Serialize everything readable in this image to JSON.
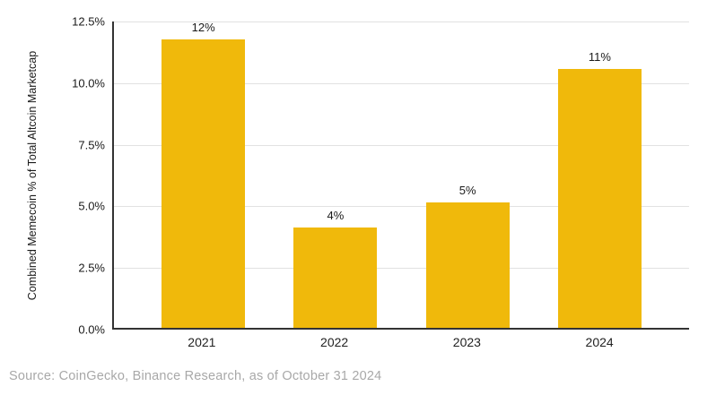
{
  "chart_data": {
    "type": "bar",
    "title": "",
    "xlabel": "",
    "ylabel": "Combined Memecoin % of Total Altcoin Marketcap",
    "categories": [
      "2021",
      "2022",
      "2023",
      "2024"
    ],
    "values": [
      12.25,
      4.1,
      5.1,
      10.55
    ],
    "bar_labels": [
      "12%",
      "4%",
      "5%",
      "11%"
    ],
    "ylim": [
      0,
      12.5
    ],
    "yticks": [
      {
        "value": 12.5,
        "label": "12.5%"
      },
      {
        "value": 10.0,
        "label": "10.0%"
      },
      {
        "value": 7.5,
        "label": "7.5%"
      },
      {
        "value": 5.0,
        "label": "5.0%"
      },
      {
        "value": 2.5,
        "label": "2.5%"
      },
      {
        "value": 0.0,
        "label": "0.0%"
      }
    ],
    "grid": true,
    "legend": "none",
    "colors": {
      "bar": "#F0B90B",
      "axis": "#333333",
      "gridline": "#e2e2e2",
      "tick_text": "#1a1a1a",
      "source_text": "#a8a8a8"
    }
  },
  "footer": {
    "source_text": "Source: CoinGecko, Binance Research, as of October 31 2024"
  }
}
